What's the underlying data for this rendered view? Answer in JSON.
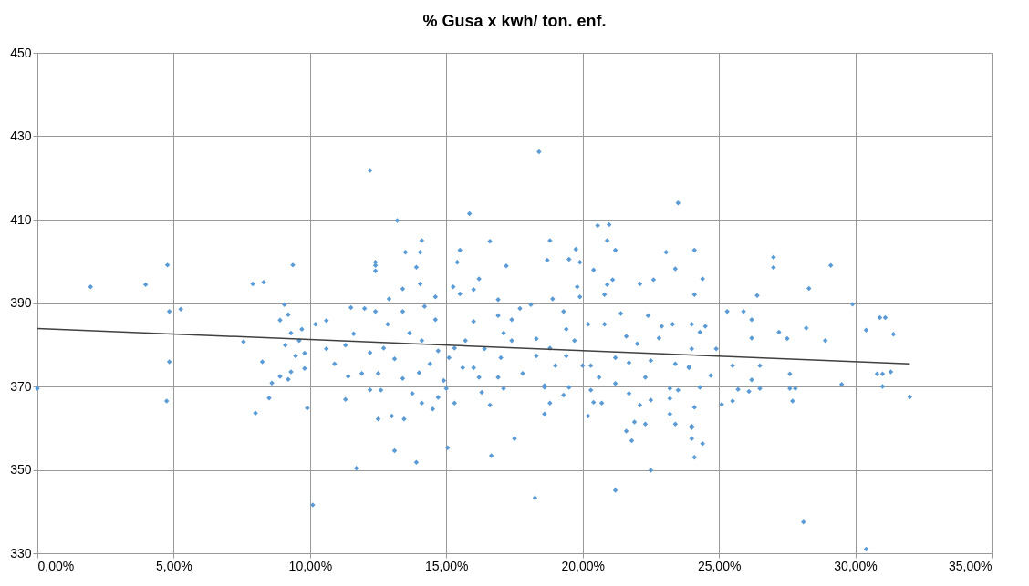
{
  "chart_data": {
    "type": "scatter",
    "title": "% Gusa x kwh/ ton. enf.",
    "xlim": [
      0,
      35
    ],
    "xticks": [
      {
        "value": 0,
        "label": "0,00%"
      },
      {
        "value": 5,
        "label": "5,00%"
      },
      {
        "value": 10,
        "label": "10,00%"
      },
      {
        "value": 15,
        "label": "15,00%"
      },
      {
        "value": 20,
        "label": "20,00%"
      },
      {
        "value": 25,
        "label": "25,00%"
      },
      {
        "value": 30,
        "label": "30,00%"
      },
      {
        "value": 35,
        "label": "35,00%"
      }
    ],
    "ylim": [
      330,
      450
    ],
    "yticks": [
      330,
      350,
      370,
      390,
      410,
      430,
      450
    ],
    "grid": true,
    "marker": "diamond",
    "series": [
      {
        "color": "#5b9bd5",
        "x": [
          0.0,
          1.95,
          3.97,
          4.77,
          4.84,
          5.26,
          4.84,
          4.74,
          7.9,
          8.3,
          9.37,
          9.06,
          9.2,
          8.9,
          7.56,
          8.25,
          8.6,
          8.5,
          8.0,
          8.9,
          9.2,
          9.3,
          9.09,
          9.3,
          9.7,
          9.6,
          9.47,
          9.8,
          9.8,
          9.9,
          10.2,
          10.6,
          10.6,
          10.9,
          11.3,
          11.4,
          11.3,
          11.6,
          11.5,
          12.0,
          12.2,
          11.7,
          10.1,
          12.4,
          12.4,
          11.9,
          12.2,
          12.2,
          18.4,
          23.5,
          15.85,
          13.2,
          20.55,
          20.97,
          20.9,
          21.2,
          23.06,
          16.6,
          18.8,
          14.1,
          13.5,
          14.04,
          15.5,
          15.4,
          13.9,
          12.4,
          17.2,
          18.7,
          19.5,
          19.75,
          19.9,
          20.4,
          23.4,
          16.2,
          14.04,
          15.25,
          16.0,
          21.1,
          22.1,
          22.6,
          20.9,
          20.8,
          19.8,
          13.4,
          12.9,
          14.6,
          15.5,
          16.9,
          18.9,
          19.9,
          18.1,
          17.7,
          19.3,
          21.4,
          22.4,
          23.3,
          12.4,
          13.4,
          14.2,
          16.0,
          16.9,
          17.4,
          19.4,
          20.2,
          20.8,
          22.9,
          24.0,
          12.85,
          14.6,
          13.65,
          17.1,
          18.3,
          19.7,
          21.6,
          22.0,
          22.8,
          18.8,
          17.4,
          15.7,
          16.4,
          15.3,
          14.1,
          12.7,
          13.1,
          14.7,
          14.4,
          15.1,
          16.0,
          17.0,
          18.3,
          19.0,
          19.4,
          20.0,
          20.3,
          21.2,
          21.7,
          22.5,
          23.4,
          23.9,
          12.5,
          13.4,
          14.0,
          14.9,
          15.6,
          16.2,
          16.9,
          17.8,
          18.6,
          19.5,
          20.6,
          21.2,
          22.3,
          23.2,
          23.5,
          12.6,
          13.75,
          15.0,
          15.3,
          16.3,
          16.6,
          17.1,
          18.6,
          19.3,
          20.3,
          20.4,
          20.7,
          21.7,
          22.1,
          22.5,
          23.2,
          14.7,
          14.1,
          12.5,
          13.0,
          13.45,
          14.5,
          18.8,
          18.6,
          20.2,
          21.9,
          22.3,
          23.2,
          23.4,
          21.6,
          21.8,
          24.0,
          17.5,
          13.1,
          13.9,
          15.05,
          16.65,
          22.5,
          21.2,
          18.25,
          24.1,
          24.4,
          24.1,
          24.5,
          24.0,
          24.0,
          24.4,
          24.1,
          24.3,
          24.0,
          23.9,
          24.3,
          24.7,
          24.9,
          24.1,
          25.3,
          25.9,
          26.2,
          26.2,
          25.5,
          26.5,
          26.2,
          26.5,
          25.7,
          26.1,
          25.5,
          25.1,
          26.4,
          27.0,
          27.0,
          27.2,
          27.5,
          27.6,
          27.6,
          27.8,
          27.7,
          28.2,
          28.9,
          28.3,
          29.1,
          29.9,
          29.5,
          28.1,
          30.4,
          30.9,
          31.1,
          30.4,
          31.4,
          30.8,
          31.0,
          31.3,
          31.0,
          32.0
        ],
        "values": [
          369.5,
          393.9,
          394.4,
          399.1,
          388.0,
          388.5,
          375.9,
          366.5,
          394.6,
          395.0,
          399.1,
          389.6,
          387.2,
          385.9,
          380.7,
          375.9,
          370.8,
          367.2,
          363.6,
          372.4,
          371.7,
          373.5,
          379.9,
          382.8,
          383.7,
          381.0,
          377.3,
          378.0,
          374.3,
          364.8,
          384.9,
          385.8,
          379.0,
          375.4,
          379.9,
          372.4,
          366.9,
          382.6,
          388.9,
          388.7,
          369.2,
          350.4,
          341.6,
          399.8,
          397.7,
          373.1,
          378.1,
          421.8,
          426.3,
          414.0,
          411.4,
          409.8,
          408.6,
          408.8,
          405.0,
          402.7,
          402.2,
          404.8,
          405.0,
          405.0,
          402.2,
          402.2,
          402.7,
          399.8,
          398.6,
          399.0,
          398.9,
          400.3,
          400.5,
          402.9,
          399.8,
          397.9,
          398.2,
          395.8,
          394.6,
          393.9,
          393.2,
          395.6,
          394.6,
          395.6,
          394.4,
          392.0,
          393.9,
          393.4,
          391.0,
          391.5,
          392.2,
          390.8,
          391.0,
          391.5,
          389.6,
          388.7,
          388.0,
          387.5,
          387.0,
          384.9,
          388.0,
          388.0,
          389.2,
          385.6,
          387.0,
          386.0,
          383.7,
          384.9,
          384.9,
          384.4,
          384.9,
          384.9,
          386.0,
          382.8,
          382.8,
          381.4,
          381.0,
          382.0,
          380.2,
          381.6,
          379.2,
          381.0,
          381.0,
          379.0,
          379.2,
          381.0,
          379.2,
          376.6,
          378.5,
          375.4,
          376.9,
          374.5,
          376.9,
          377.3,
          375.0,
          377.3,
          375.0,
          375.0,
          376.9,
          375.7,
          376.2,
          375.4,
          374.5,
          373.1,
          371.9,
          373.3,
          371.4,
          374.5,
          372.2,
          372.2,
          373.1,
          370.2,
          369.8,
          372.2,
          370.7,
          372.2,
          369.5,
          369.1,
          369.1,
          368.3,
          369.5,
          366.0,
          368.6,
          365.5,
          369.5,
          369.8,
          367.9,
          369.1,
          366.2,
          366.0,
          368.3,
          365.5,
          366.7,
          367.1,
          367.4,
          366.0,
          362.2,
          362.9,
          362.2,
          364.6,
          366.0,
          363.4,
          362.9,
          361.5,
          361.0,
          363.4,
          361.0,
          359.3,
          357.0,
          360.1,
          357.5,
          354.6,
          351.8,
          355.3,
          353.4,
          349.9,
          345.1,
          343.3,
          402.7,
          395.8,
          392.0,
          384.4,
          360.5,
          357.5,
          356.3,
          353.0,
          383.0,
          379.0,
          374.7,
          369.8,
          372.6,
          379.0,
          365.0,
          388.0,
          388.0,
          386.0,
          381.6,
          375.0,
          375.0,
          371.6,
          369.5,
          369.3,
          368.8,
          366.5,
          365.7,
          391.8,
          401.0,
          398.5,
          383.0,
          381.5,
          373.0,
          369.5,
          369.5,
          366.5,
          384.0,
          381.0,
          393.5,
          399.0,
          389.7,
          370.5,
          337.5,
          331.0,
          386.5,
          386.5,
          383.5,
          382.5,
          373.0,
          373.0,
          373.5,
          370.0,
          367.5
        ]
      },
      {
        "type": "line",
        "color": "#404040",
        "marker": "none",
        "line_style": "solid",
        "x": [
          0,
          32
        ],
        "values": [
          383.9,
          375.4
        ]
      }
    ]
  }
}
